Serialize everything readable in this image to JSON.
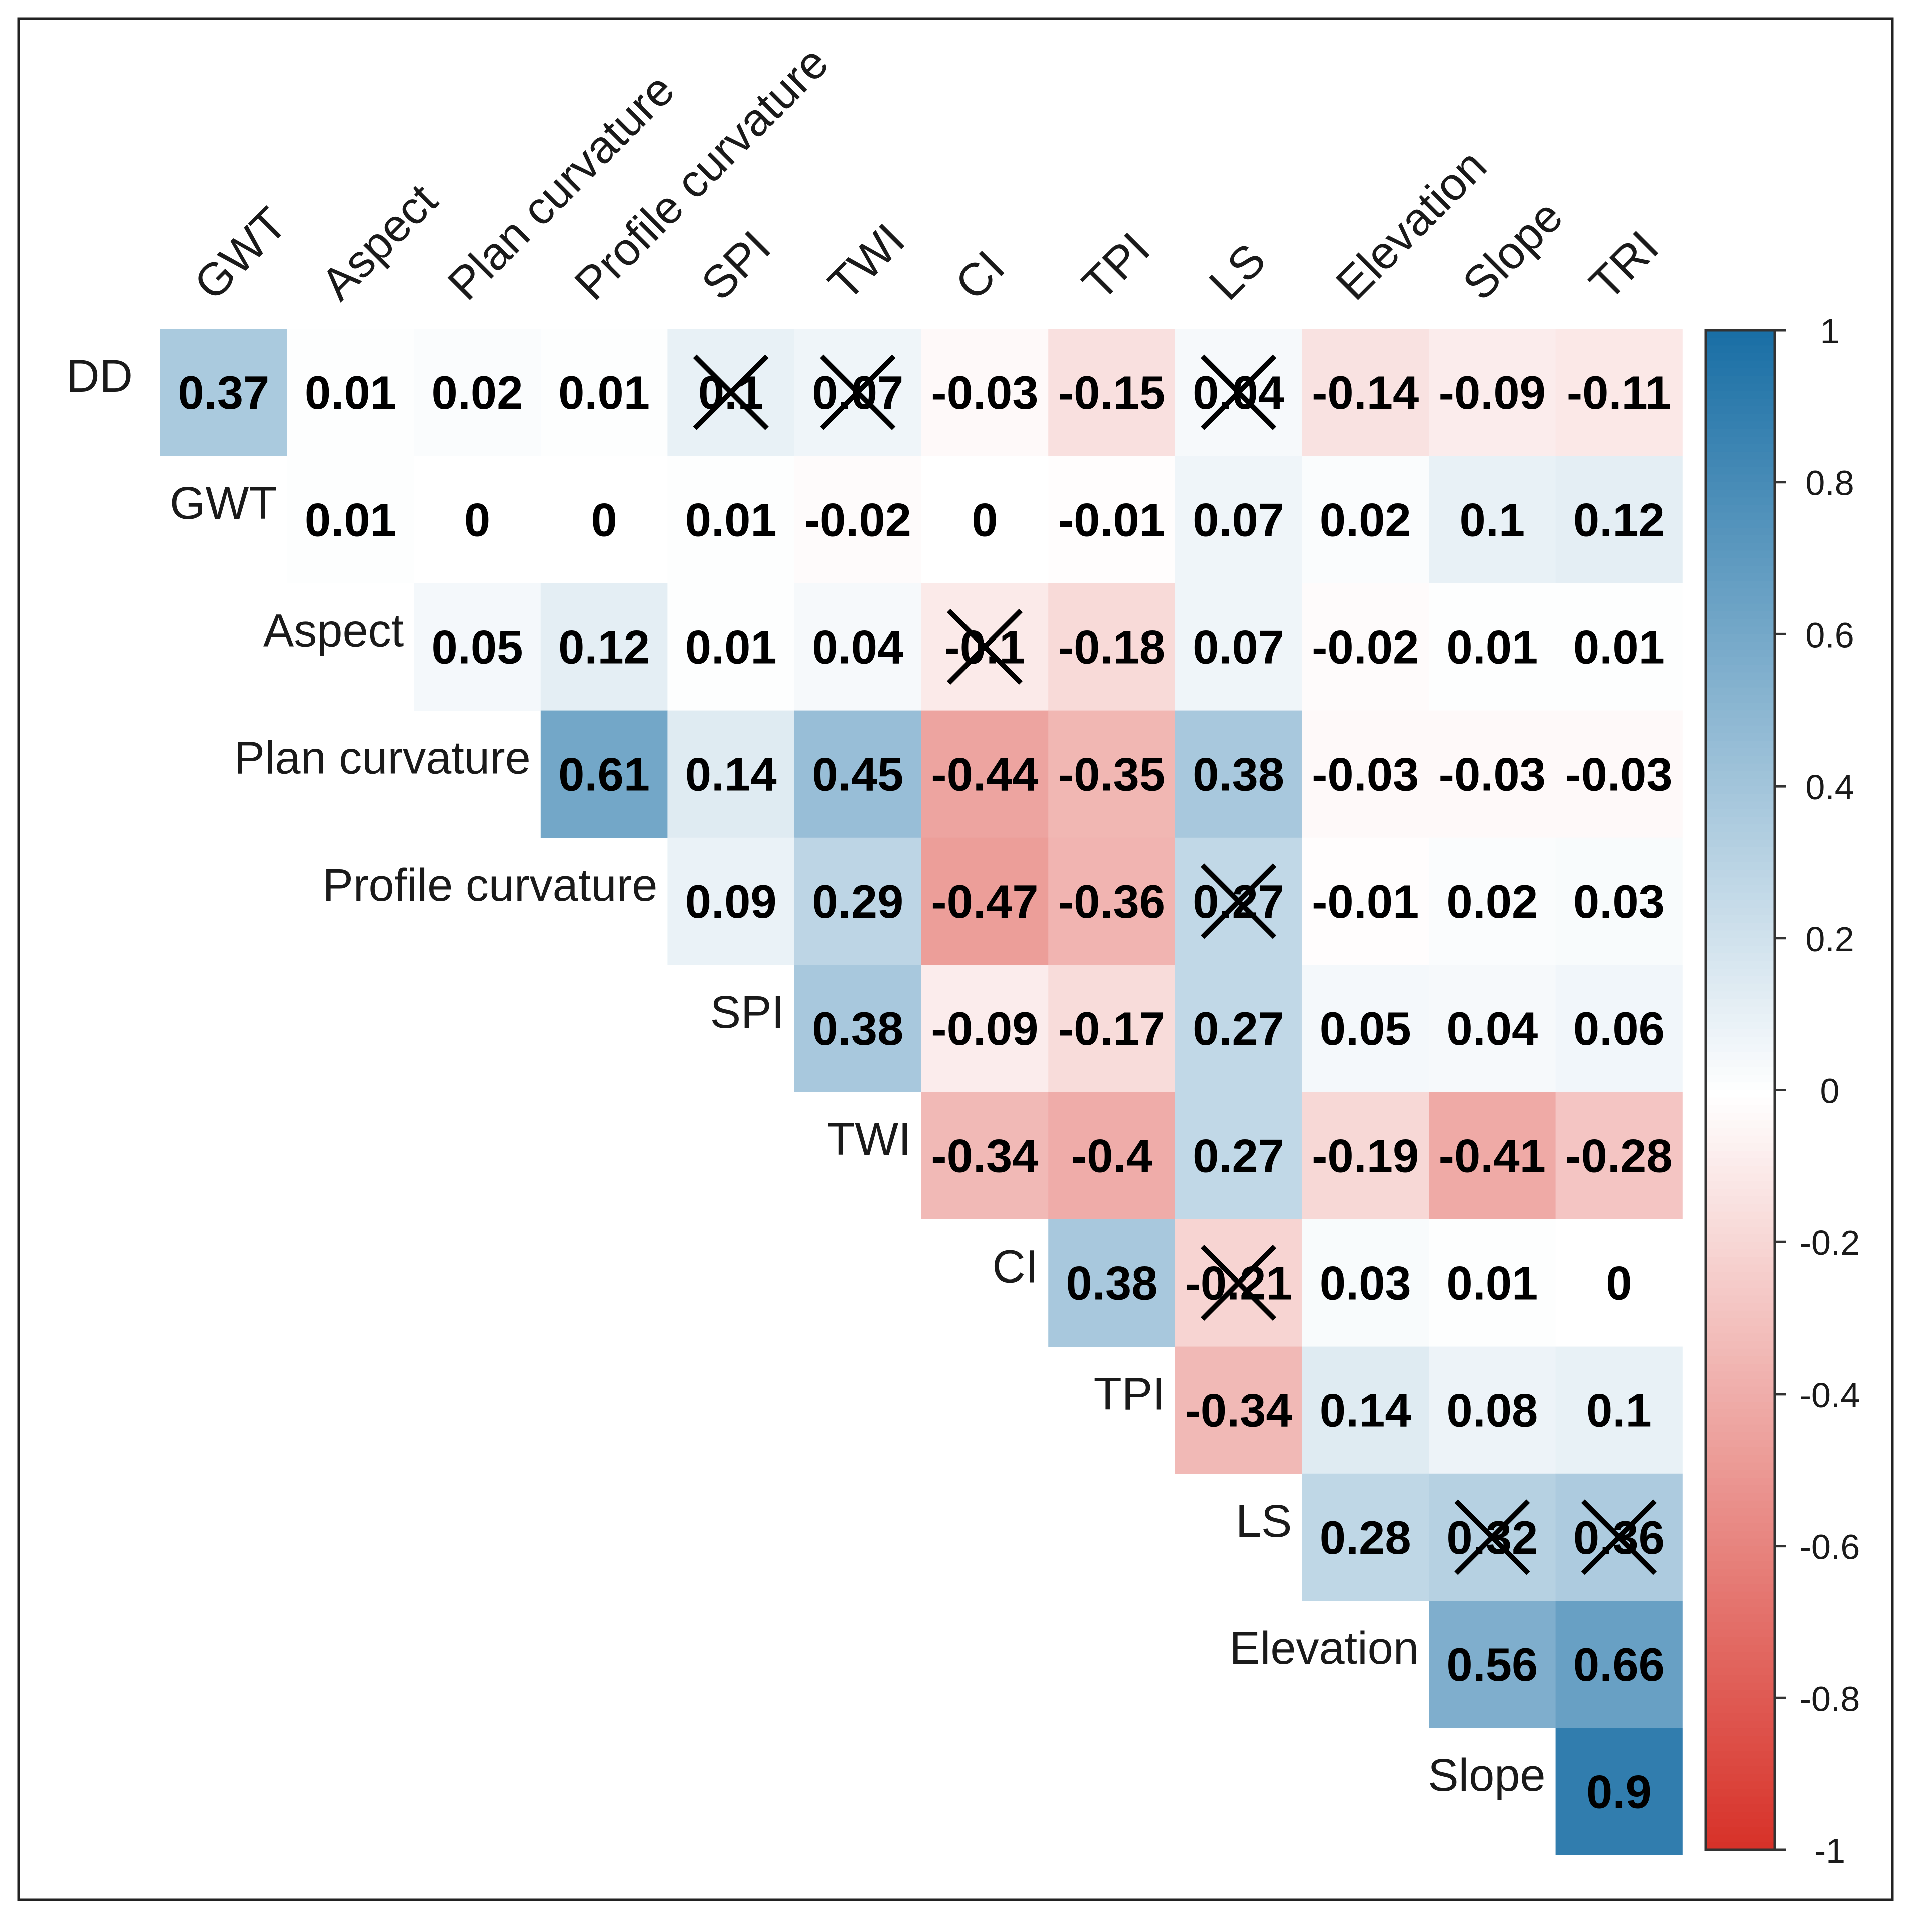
{
  "chart_data": {
    "type": "heatmap",
    "title": "",
    "row_labels": [
      "DD",
      "GWT",
      "Aspect",
      "Plan curvature",
      "Profile curvature",
      "SPI",
      "TWI",
      "CI",
      "TPI",
      "LS",
      "Elevation",
      "Slope"
    ],
    "column_labels": [
      "GWT",
      "Aspect",
      "Plan curvature",
      "Profile curvature",
      "SPI",
      "TWI",
      "CI",
      "TPI",
      "LS",
      "Elevation",
      "Slope",
      "TRI"
    ],
    "cells": [
      {
        "row": "DD",
        "col": "GWT",
        "value": 0.37,
        "label": "0.37",
        "crossed": false
      },
      {
        "row": "DD",
        "col": "Aspect",
        "value": 0.01,
        "label": "0.01",
        "crossed": false
      },
      {
        "row": "DD",
        "col": "Plan curvature",
        "value": 0.02,
        "label": "0.02",
        "crossed": false
      },
      {
        "row": "DD",
        "col": "Profile curvature",
        "value": 0.01,
        "label": "0.01",
        "crossed": false
      },
      {
        "row": "DD",
        "col": "SPI",
        "value": 0.1,
        "label": "0.1",
        "crossed": true
      },
      {
        "row": "DD",
        "col": "TWI",
        "value": 0.07,
        "label": "0.07",
        "crossed": true
      },
      {
        "row": "DD",
        "col": "CI",
        "value": -0.03,
        "label": "-0.03",
        "crossed": false
      },
      {
        "row": "DD",
        "col": "TPI",
        "value": -0.15,
        "label": "-0.15",
        "crossed": false
      },
      {
        "row": "DD",
        "col": "LS",
        "value": 0.04,
        "label": "0.04",
        "crossed": true
      },
      {
        "row": "DD",
        "col": "Elevation",
        "value": -0.14,
        "label": "-0.14",
        "crossed": false
      },
      {
        "row": "DD",
        "col": "Slope",
        "value": -0.09,
        "label": "-0.09",
        "crossed": false
      },
      {
        "row": "DD",
        "col": "TRI",
        "value": -0.11,
        "label": "-0.11",
        "crossed": false
      },
      {
        "row": "GWT",
        "col": "Aspect",
        "value": 0.01,
        "label": "0.01",
        "crossed": false
      },
      {
        "row": "GWT",
        "col": "Plan curvature",
        "value": 0,
        "label": "0",
        "crossed": false
      },
      {
        "row": "GWT",
        "col": "Profile curvature",
        "value": 0,
        "label": "0",
        "crossed": false
      },
      {
        "row": "GWT",
        "col": "SPI",
        "value": 0.01,
        "label": "0.01",
        "crossed": false
      },
      {
        "row": "GWT",
        "col": "TWI",
        "value": -0.02,
        "label": "-0.02",
        "crossed": false
      },
      {
        "row": "GWT",
        "col": "CI",
        "value": 0,
        "label": "0",
        "crossed": false
      },
      {
        "row": "GWT",
        "col": "TPI",
        "value": -0.01,
        "label": "-0.01",
        "crossed": false
      },
      {
        "row": "GWT",
        "col": "LS",
        "value": 0.07,
        "label": "0.07",
        "crossed": false
      },
      {
        "row": "GWT",
        "col": "Elevation",
        "value": 0.02,
        "label": "0.02",
        "crossed": false
      },
      {
        "row": "GWT",
        "col": "Slope",
        "value": 0.1,
        "label": "0.1",
        "crossed": false
      },
      {
        "row": "GWT",
        "col": "TRI",
        "value": 0.12,
        "label": "0.12",
        "crossed": false
      },
      {
        "row": "Aspect",
        "col": "Plan curvature",
        "value": 0.05,
        "label": "0.05",
        "crossed": false
      },
      {
        "row": "Aspect",
        "col": "Profile curvature",
        "value": 0.12,
        "label": "0.12",
        "crossed": false
      },
      {
        "row": "Aspect",
        "col": "SPI",
        "value": 0.01,
        "label": "0.01",
        "crossed": false
      },
      {
        "row": "Aspect",
        "col": "TWI",
        "value": 0.04,
        "label": "0.04",
        "crossed": false
      },
      {
        "row": "Aspect",
        "col": "CI",
        "value": -0.1,
        "label": "-0.1",
        "crossed": true
      },
      {
        "row": "Aspect",
        "col": "TPI",
        "value": -0.18,
        "label": "-0.18",
        "crossed": false
      },
      {
        "row": "Aspect",
        "col": "LS",
        "value": 0.07,
        "label": "0.07",
        "crossed": false
      },
      {
        "row": "Aspect",
        "col": "Elevation",
        "value": -0.02,
        "label": "-0.02",
        "crossed": false
      },
      {
        "row": "Aspect",
        "col": "Slope",
        "value": 0.01,
        "label": "0.01",
        "crossed": false
      },
      {
        "row": "Aspect",
        "col": "TRI",
        "value": 0.01,
        "label": "0.01",
        "crossed": false
      },
      {
        "row": "Plan curvature",
        "col": "Profile curvature",
        "value": 0.61,
        "label": "0.61",
        "crossed": false
      },
      {
        "row": "Plan curvature",
        "col": "SPI",
        "value": 0.14,
        "label": "0.14",
        "crossed": false
      },
      {
        "row": "Plan curvature",
        "col": "TWI",
        "value": 0.45,
        "label": "0.45",
        "crossed": false
      },
      {
        "row": "Plan curvature",
        "col": "CI",
        "value": -0.44,
        "label": "-0.44",
        "crossed": false
      },
      {
        "row": "Plan curvature",
        "col": "TPI",
        "value": -0.35,
        "label": "-0.35",
        "crossed": false
      },
      {
        "row": "Plan curvature",
        "col": "LS",
        "value": 0.38,
        "label": "0.38",
        "crossed": false
      },
      {
        "row": "Plan curvature",
        "col": "Elevation",
        "value": -0.03,
        "label": "-0.03",
        "crossed": false
      },
      {
        "row": "Plan curvature",
        "col": "Slope",
        "value": -0.03,
        "label": "-0.03",
        "crossed": false
      },
      {
        "row": "Plan curvature",
        "col": "TRI",
        "value": -0.03,
        "label": "-0.03",
        "crossed": false
      },
      {
        "row": "Profile curvature",
        "col": "SPI",
        "value": 0.09,
        "label": "0.09",
        "crossed": false
      },
      {
        "row": "Profile curvature",
        "col": "TWI",
        "value": 0.29,
        "label": "0.29",
        "crossed": false
      },
      {
        "row": "Profile curvature",
        "col": "CI",
        "value": -0.47,
        "label": "-0.47",
        "crossed": false
      },
      {
        "row": "Profile curvature",
        "col": "TPI",
        "value": -0.36,
        "label": "-0.36",
        "crossed": false
      },
      {
        "row": "Profile curvature",
        "col": "LS",
        "value": 0.27,
        "label": "0.27",
        "crossed": true
      },
      {
        "row": "Profile curvature",
        "col": "Elevation",
        "value": -0.01,
        "label": "-0.01",
        "crossed": false
      },
      {
        "row": "Profile curvature",
        "col": "Slope",
        "value": 0.02,
        "label": "0.02",
        "crossed": false
      },
      {
        "row": "Profile curvature",
        "col": "TRI",
        "value": 0.03,
        "label": "0.03",
        "crossed": false
      },
      {
        "row": "SPI",
        "col": "TWI",
        "value": 0.38,
        "label": "0.38",
        "crossed": false
      },
      {
        "row": "SPI",
        "col": "CI",
        "value": -0.09,
        "label": "-0.09",
        "crossed": false
      },
      {
        "row": "SPI",
        "col": "TPI",
        "value": -0.17,
        "label": "-0.17",
        "crossed": false
      },
      {
        "row": "SPI",
        "col": "LS",
        "value": 0.27,
        "label": "0.27",
        "crossed": false
      },
      {
        "row": "SPI",
        "col": "Elevation",
        "value": 0.05,
        "label": "0.05",
        "crossed": false
      },
      {
        "row": "SPI",
        "col": "Slope",
        "value": 0.04,
        "label": "0.04",
        "crossed": false
      },
      {
        "row": "SPI",
        "col": "TRI",
        "value": 0.06,
        "label": "0.06",
        "crossed": false
      },
      {
        "row": "TWI",
        "col": "CI",
        "value": -0.34,
        "label": "-0.34",
        "crossed": false
      },
      {
        "row": "TWI",
        "col": "TPI",
        "value": -0.4,
        "label": "-0.4",
        "crossed": false
      },
      {
        "row": "TWI",
        "col": "LS",
        "value": 0.27,
        "label": "0.27",
        "crossed": false
      },
      {
        "row": "TWI",
        "col": "Elevation",
        "value": -0.19,
        "label": "-0.19",
        "crossed": false
      },
      {
        "row": "TWI",
        "col": "Slope",
        "value": -0.41,
        "label": "-0.41",
        "crossed": false
      },
      {
        "row": "TWI",
        "col": "TRI",
        "value": -0.28,
        "label": "-0.28",
        "crossed": false
      },
      {
        "row": "CI",
        "col": "TPI",
        "value": 0.38,
        "label": "0.38",
        "crossed": false
      },
      {
        "row": "CI",
        "col": "LS",
        "value": -0.21,
        "label": "-0.21",
        "crossed": true
      },
      {
        "row": "CI",
        "col": "Elevation",
        "value": 0.03,
        "label": "0.03",
        "crossed": false
      },
      {
        "row": "CI",
        "col": "Slope",
        "value": 0.01,
        "label": "0.01",
        "crossed": false
      },
      {
        "row": "CI",
        "col": "TRI",
        "value": 0,
        "label": "0",
        "crossed": false
      },
      {
        "row": "TPI",
        "col": "LS",
        "value": -0.34,
        "label": "-0.34",
        "crossed": false
      },
      {
        "row": "TPI",
        "col": "Elevation",
        "value": 0.14,
        "label": "0.14",
        "crossed": false
      },
      {
        "row": "TPI",
        "col": "Slope",
        "value": 0.08,
        "label": "0.08",
        "crossed": false
      },
      {
        "row": "TPI",
        "col": "TRI",
        "value": 0.1,
        "label": "0.1",
        "crossed": false
      },
      {
        "row": "LS",
        "col": "Elevation",
        "value": 0.28,
        "label": "0.28",
        "crossed": false
      },
      {
        "row": "LS",
        "col": "Slope",
        "value": 0.32,
        "label": "0.32",
        "crossed": true
      },
      {
        "row": "LS",
        "col": "TRI",
        "value": 0.36,
        "label": "0.36",
        "crossed": true
      },
      {
        "row": "Elevation",
        "col": "Slope",
        "value": 0.56,
        "label": "0.56",
        "crossed": false
      },
      {
        "row": "Elevation",
        "col": "TRI",
        "value": 0.66,
        "label": "0.66",
        "crossed": false
      },
      {
        "row": "Slope",
        "col": "TRI",
        "value": 0.9,
        "label": "0.9",
        "crossed": false
      }
    ],
    "colorbar": {
      "range": [
        -1,
        1
      ],
      "ticks": [
        1,
        0.8,
        0.6,
        0.4,
        0.2,
        0,
        -0.2,
        -0.4,
        -0.6,
        -0.8,
        -1
      ],
      "tick_labels": [
        "1",
        "0.8",
        "0.6",
        "0.4",
        "0.2",
        "0",
        "-0.2",
        "-0.4",
        "-0.6",
        "-0.8",
        "-1"
      ],
      "low_color": "#d73027",
      "mid_color": "#ffffff",
      "high_color": "#1a6fa5"
    }
  }
}
